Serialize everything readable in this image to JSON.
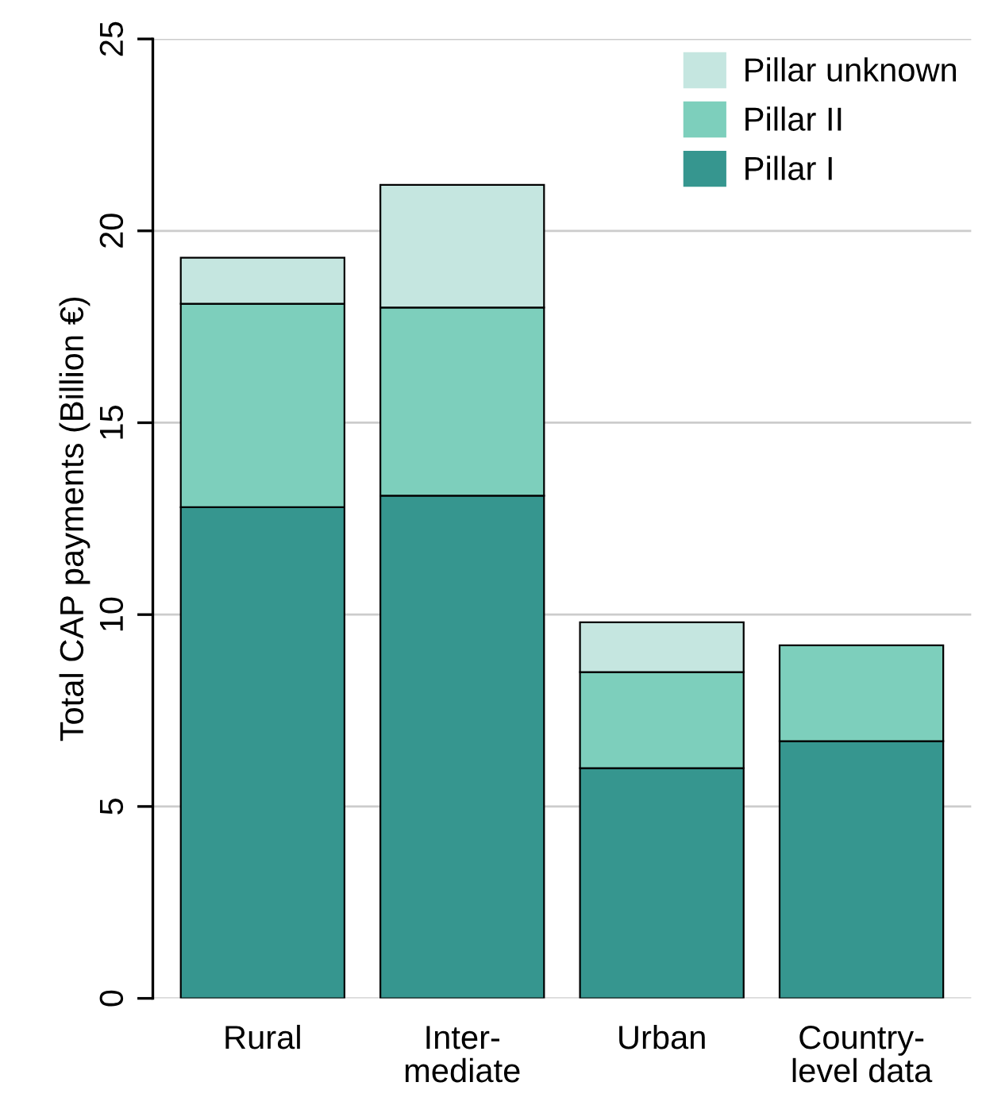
{
  "chart_data": {
    "type": "bar",
    "stacked": true,
    "ylabel": "Total CAP payments (Billion €)",
    "categories": [
      "Rural",
      "Inter-\nmediate",
      "Urban",
      "Country-\nlevel data"
    ],
    "series": [
      {
        "name": "Pillar I",
        "color": "#36968f",
        "values": [
          12.8,
          13.1,
          6.0,
          6.7
        ]
      },
      {
        "name": "Pillar II",
        "color": "#7dcfbc",
        "values": [
          5.3,
          4.9,
          2.5,
          2.5
        ]
      },
      {
        "name": "Pillar unknown",
        "color": "#c5e6e0",
        "values": [
          1.2,
          3.2,
          1.3,
          null
        ]
      }
    ],
    "ylim": [
      0,
      25
    ],
    "yticks": [
      0,
      5,
      10,
      15,
      20,
      25
    ],
    "grid": "y",
    "legend": "top right"
  }
}
